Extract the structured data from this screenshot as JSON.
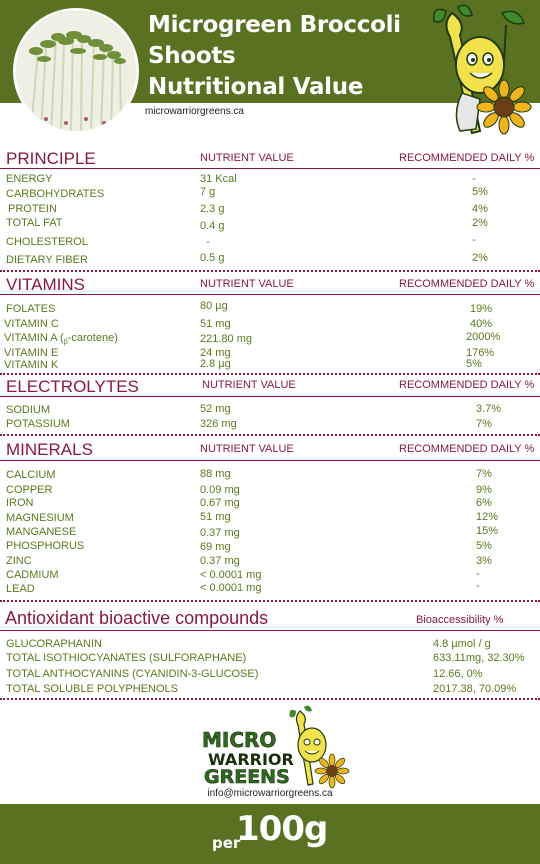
{
  "header": {
    "title_lines": [
      "Microgreen Broccoli",
      "Shoots",
      "Nutritional Value"
    ],
    "website": "microwarriorgreens.ca"
  },
  "principle": {
    "title": "PRINCIPLE",
    "col_value": "NUTRIENT VALUE",
    "col_rdi": "RECOMMENDED DAILY %",
    "rows": [
      {
        "name": "ENERGY",
        "value": "31 Kcal",
        "rdi": "-"
      },
      {
        "name": "CARBOHYDRATES",
        "value": "7 g",
        "rdi": "5%"
      },
      {
        "name": "PROTEIN",
        "value": "2.3 g",
        "rdi": "4%"
      },
      {
        "name": "TOTAL FAT",
        "value": "0.4 g",
        "rdi": "2%"
      },
      {
        "name": "CHOLESTEROL",
        "value": "-",
        "rdi": "-"
      },
      {
        "name": "DIETARY FIBER",
        "value": "0.5 g",
        "rdi": "2%"
      }
    ]
  },
  "vitamins": {
    "title": "VITAMINS",
    "col_value": "NUTRIENT VALUE",
    "col_rdi": "RECOMMENDED DAILY %",
    "rows": [
      {
        "name": "FOLATES",
        "value": "80 µg",
        "rdi": "19%"
      },
      {
        "name": "VITAMIN C",
        "value": "51 mg",
        "rdi": "40%"
      },
      {
        "name": "VITAMIN A (",
        "name_sub": "β",
        "name_tail": "-carotene)",
        "value": "221.80 mg",
        "rdi": "2000%"
      },
      {
        "name": "VITAMIN E",
        "value": "24 mg",
        "rdi": "176%"
      },
      {
        "name": "VITAMIN K",
        "value": "2.8 µg",
        "rdi": "5%"
      }
    ]
  },
  "electrolytes": {
    "title": "ELECTROLYTES",
    "col_value": "NUTRIENT VALUE",
    "col_rdi": "RECOMMENDED DAILY %",
    "rows": [
      {
        "name": "SODIUM",
        "value": "52 mg",
        "rdi": "3.7%"
      },
      {
        "name": "POTASSIUM",
        "value": "326 mg",
        "rdi": "7%"
      }
    ]
  },
  "minerals": {
    "title": "MINERALS",
    "col_value": "NUTRIENT VALUE",
    "col_rdi": "RECOMMENDED DAILY %",
    "rows": [
      {
        "name": "CALCIUM",
        "value": "88 mg",
        "rdi": "7%"
      },
      {
        "name": "COPPER",
        "value": "0.09 mg",
        "rdi": "9%"
      },
      {
        "name": "IRON",
        "value": "0.67 mg",
        "rdi": "6%"
      },
      {
        "name": "MAGNESIUM",
        "value": "51 mg",
        "rdi": "12%"
      },
      {
        "name": "MANGANESE",
        "value": "0.37 mg",
        "rdi": "15%"
      },
      {
        "name": "PHOSPHORUS",
        "value": "69 mg",
        "rdi": "5%"
      },
      {
        "name": "ZINC",
        "value": "0.37 mg",
        "rdi": "3%"
      },
      {
        "name": "CADMIUM",
        "value": "< 0.0001 mg",
        "rdi": "-"
      },
      {
        "name": "LEAD",
        "value": "< 0.0001 mg",
        "rdi": "-"
      }
    ]
  },
  "antioxidants": {
    "title": "Antioxidant bioactive compounds",
    "col_rdi": "Bioaccessibility %",
    "rows": [
      {
        "name": "GLUCORAPHANIN",
        "value": "4.8 µmol / g"
      },
      {
        "name": "TOTAL ISOTHIOCYANATES (SULFORAPHANE)",
        "value": "633.11mg, 32.30%"
      },
      {
        "name": "TOTAL ANTHOCYANINS (CYANIDIN-3-GLUCOSE)",
        "value": "12.66, 0%"
      },
      {
        "name": "TOTAL SOLUBLE POLYPHENOLS",
        "value": "2017.38, 70.09%"
      }
    ]
  },
  "logo": {
    "line1": "MICRO",
    "line2": "WARRIOR",
    "line3": "GREENS"
  },
  "footer": {
    "email": "info@microwarriorgreens.ca",
    "per": "per",
    "amount": "100g"
  },
  "colors": {
    "brand_green": "#587222",
    "section_red": "#8b1a3a",
    "text_green": "#5a7a1e"
  },
  "icons": [
    "microgreens-photo",
    "warrior-mascot-icon",
    "sunflower-icon"
  ]
}
